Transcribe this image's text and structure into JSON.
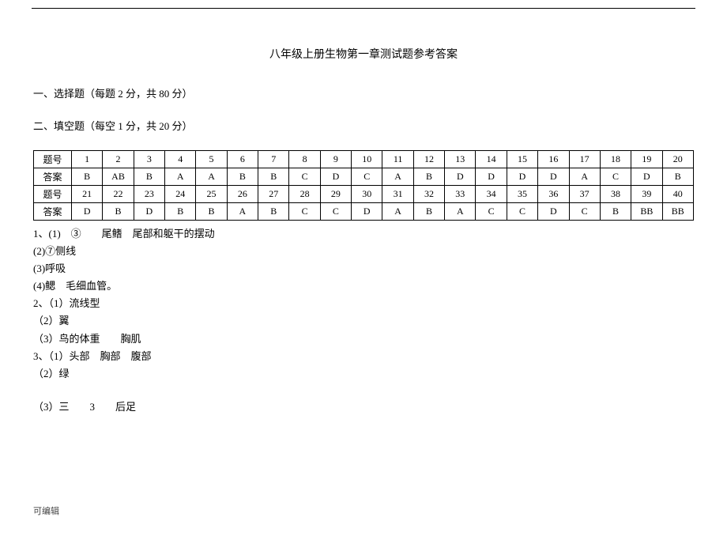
{
  "title": "八年级上册生物第一章测试题参考答案",
  "sections": {
    "mc": "一、选择题（每题 2 分，共 80 分）",
    "fb": "二、填空题（每空 1 分，共 20 分）"
  },
  "table": {
    "label_q": "题号",
    "label_a": "答案",
    "rows": [
      {
        "nums": [
          "1",
          "2",
          "3",
          "4",
          "5",
          "6",
          "7",
          "8",
          "9",
          "10",
          "11",
          "12",
          "13",
          "14",
          "15",
          "16",
          "17",
          "18",
          "19",
          "20"
        ],
        "ans": [
          "B",
          "AB",
          "B",
          "A",
          "A",
          "B",
          "B",
          "C",
          "D",
          "C",
          "A",
          "B",
          "D",
          "D",
          "D",
          "D",
          "A",
          "C",
          "D",
          "B"
        ]
      },
      {
        "nums": [
          "21",
          "22",
          "23",
          "24",
          "25",
          "26",
          "27",
          "28",
          "29",
          "30",
          "31",
          "32",
          "33",
          "34",
          "35",
          "36",
          "37",
          "38",
          "39",
          "40"
        ],
        "ans": [
          "D",
          "B",
          "D",
          "B",
          "B",
          "A",
          "B",
          "C",
          "C",
          "D",
          "A",
          "B",
          "A",
          "C",
          "C",
          "D",
          "C",
          "B",
          "BB",
          "BB"
        ]
      }
    ]
  },
  "fill": {
    "l1": "1、(1)　③　　尾鳍　尾部和躯干的摆动",
    "l2": "(2)⑦侧线",
    "l3": "(3)呼吸",
    "l4": "(4)鳃　毛细血管。",
    "l5": "2、（1）流线型",
    "l6": "（2）翼",
    "l7": "（3）鸟的体重　　胸肌",
    "l8": "3、（1）头部　胸部　腹部",
    "l9": "（2）绿",
    "l10": "（3）三　　3　　后足"
  },
  "footer": "可编辑"
}
